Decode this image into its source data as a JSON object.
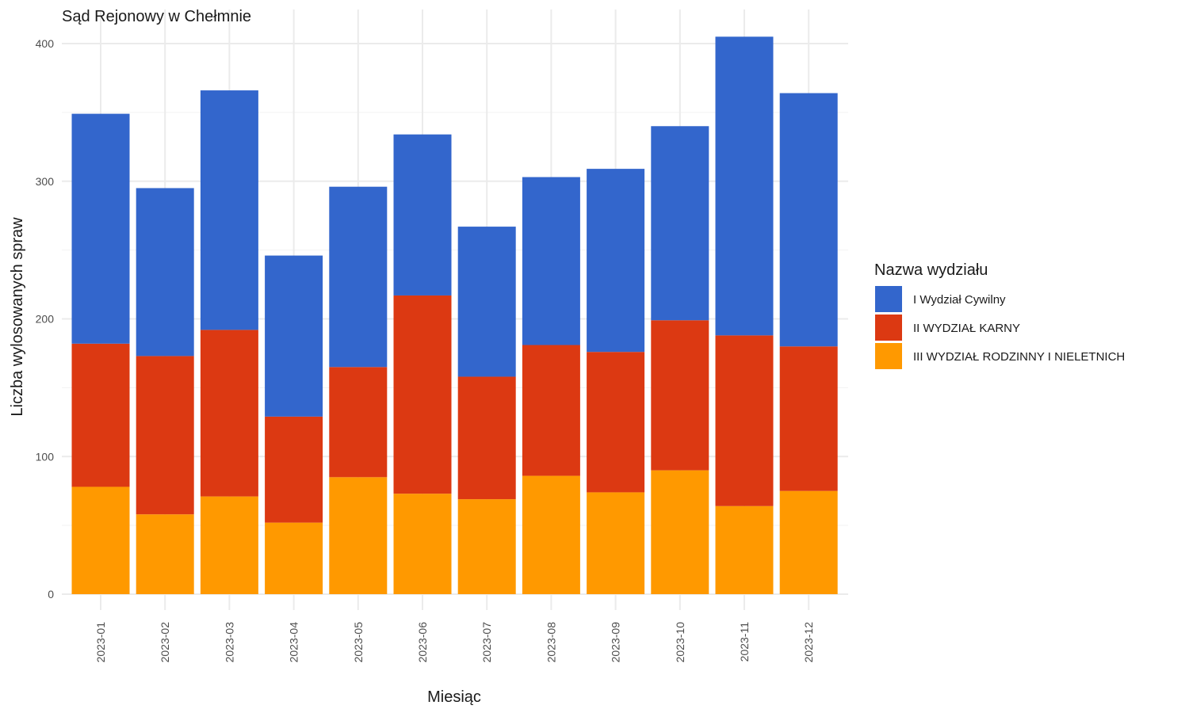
{
  "chart_data": {
    "type": "bar",
    "stacked": true,
    "title": "Sąd Rejonowy w Chełmnie",
    "xlabel": "Miesiąc",
    "ylabel": "Liczba wylosowanych spraw",
    "ylim": [
      0,
      420
    ],
    "yticks": [
      0,
      100,
      200,
      300,
      400
    ],
    "grid": true,
    "legend_position": "right",
    "legend_title": "Nazwa wydziału",
    "categories": [
      "2023-01",
      "2023-02",
      "2023-03",
      "2023-04",
      "2023-05",
      "2023-06",
      "2023-07",
      "2023-08",
      "2023-09",
      "2023-10",
      "2023-11",
      "2023-12"
    ],
    "series": [
      {
        "name": "III WYDZIAŁ RODZINNY I NIELETNICH",
        "color": "#FF9900",
        "values": [
          78,
          58,
          71,
          52,
          85,
          73,
          69,
          86,
          74,
          90,
          64,
          75
        ]
      },
      {
        "name": "II WYDZIAŁ KARNY",
        "color": "#DC3912",
        "values": [
          104,
          115,
          121,
          77,
          80,
          144,
          89,
          95,
          102,
          109,
          124,
          105
        ]
      },
      {
        "name": "I Wydział Cywilny",
        "color": "#3366CC",
        "values": [
          167,
          122,
          174,
          117,
          131,
          117,
          109,
          122,
          133,
          141,
          217,
          184
        ]
      }
    ],
    "legend_order": [
      "I Wydział Cywilny",
      "II WYDZIAŁ KARNY",
      "III WYDZIAŁ RODZINNY I NIELETNICH"
    ]
  }
}
